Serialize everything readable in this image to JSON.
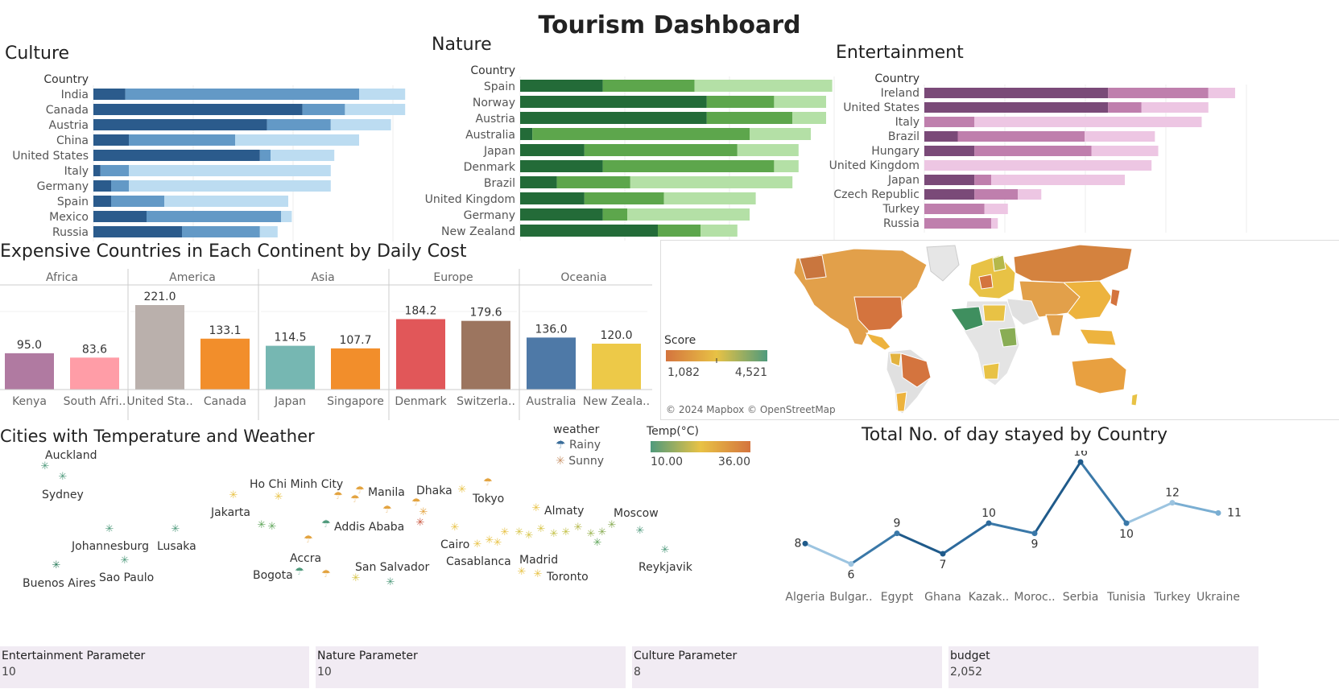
{
  "title": "Tourism Dashboard",
  "culture": {
    "title": "Culture",
    "dim_label": "Country",
    "colors": [
      "#2b5b8c",
      "#6399c6",
      "#bcdcf1"
    ],
    "rows": [
      {
        "label": "India",
        "segments": [
          9,
          66,
          13
        ]
      },
      {
        "label": "Canada",
        "segments": [
          59,
          12,
          17
        ]
      },
      {
        "label": "Austria",
        "segments": [
          49,
          18,
          17
        ]
      },
      {
        "label": "China",
        "segments": [
          10,
          30,
          35
        ]
      },
      {
        "label": "United States",
        "segments": [
          47,
          3,
          18
        ]
      },
      {
        "label": "Italy",
        "segments": [
          2,
          8,
          57
        ]
      },
      {
        "label": "Germany",
        "segments": [
          5,
          5,
          57
        ]
      },
      {
        "label": "Spain",
        "segments": [
          5,
          15,
          35
        ]
      },
      {
        "label": "Mexico",
        "segments": [
          15,
          38,
          3
        ]
      },
      {
        "label": "Russia",
        "segments": [
          25,
          22,
          5
        ]
      }
    ]
  },
  "nature": {
    "title": "Nature",
    "dim_label": "Country",
    "colors": [
      "#236b38",
      "#5da64c",
      "#b4e0a6"
    ],
    "rows": [
      {
        "label": "Spain",
        "segments": [
          27,
          30,
          45
        ]
      },
      {
        "label": "Norway",
        "segments": [
          61,
          22,
          17
        ]
      },
      {
        "label": "Austria",
        "segments": [
          61,
          28,
          11
        ]
      },
      {
        "label": "Australia",
        "segments": [
          4,
          71,
          20
        ]
      },
      {
        "label": "Japan",
        "segments": [
          21,
          50,
          20
        ]
      },
      {
        "label": "Denmark",
        "segments": [
          27,
          56,
          8
        ]
      },
      {
        "label": "Brazil",
        "segments": [
          12,
          24,
          53
        ]
      },
      {
        "label": "United Kingdom",
        "segments": [
          21,
          26,
          30
        ]
      },
      {
        "label": "Germany",
        "segments": [
          27,
          8,
          40
        ]
      },
      {
        "label": "New Zealand",
        "segments": [
          45,
          14,
          12
        ]
      }
    ]
  },
  "entertainment": {
    "title": "Entertainment",
    "dim_label": "Country",
    "colors": [
      "#7a4a78",
      "#bf7fad",
      "#edc6e3"
    ],
    "rows": [
      {
        "label": "Ireland",
        "segments": [
          55,
          30,
          8
        ]
      },
      {
        "label": "United States",
        "segments": [
          55,
          10,
          20
        ]
      },
      {
        "label": "Italy",
        "segments": [
          0,
          15,
          68
        ]
      },
      {
        "label": "Brazil",
        "segments": [
          10,
          38,
          21
        ]
      },
      {
        "label": "Hungary",
        "segments": [
          15,
          35,
          20
        ]
      },
      {
        "label": "United Kingdom",
        "segments": [
          0,
          0,
          68
        ]
      },
      {
        "label": "Japan",
        "segments": [
          15,
          5,
          40
        ]
      },
      {
        "label": "Czech Republic",
        "segments": [
          15,
          13,
          7
        ]
      },
      {
        "label": "Turkey",
        "segments": [
          0,
          18,
          7
        ]
      },
      {
        "label": "Russia",
        "segments": [
          0,
          20,
          2
        ]
      }
    ]
  },
  "daily_cost": {
    "title": "Expensive Countries in Each Continent by Daily Cost",
    "groups": [
      {
        "continent": "Africa",
        "bars": [
          {
            "label": "Kenya",
            "value": 95.0,
            "value_label": "95.0",
            "color": "#b07aa1"
          },
          {
            "label": "South Afri..",
            "value": 83.6,
            "value_label": "83.6",
            "color": "#ff9da7"
          }
        ]
      },
      {
        "continent": "America",
        "bars": [
          {
            "label": "United Sta..",
            "value": 221.0,
            "value_label": "221.0",
            "color": "#bab0ac"
          },
          {
            "label": "Canada",
            "value": 133.1,
            "value_label": "133.1",
            "color": "#f28e2b"
          }
        ]
      },
      {
        "continent": "Asia",
        "bars": [
          {
            "label": "Japan",
            "value": 114.5,
            "value_label": "114.5",
            "color": "#76b7b2"
          },
          {
            "label": "Singapore",
            "value": 107.7,
            "value_label": "107.7",
            "color": "#f28e2b"
          }
        ]
      },
      {
        "continent": "Europe",
        "bars": [
          {
            "label": "Denmark",
            "value": 184.2,
            "value_label": "184.2",
            "color": "#e15759"
          },
          {
            "label": "Switzerla..",
            "value": 179.6,
            "value_label": "179.6",
            "color": "#9c755f"
          }
        ]
      },
      {
        "continent": "Oceania",
        "bars": [
          {
            "label": "Australia",
            "value": 136.0,
            "value_label": "136.0",
            "color": "#4e79a7"
          },
          {
            "label": "New Zeala..",
            "value": 120.0,
            "value_label": "120.0",
            "color": "#edc948"
          }
        ]
      }
    ]
  },
  "map": {
    "legend_title": "Score",
    "legend_min": "1,082",
    "legend_max": "4,521",
    "attribution": "© 2024 Mapbox © OpenStreetMap"
  },
  "cities": {
    "title": "Cities with Temperature and Weather",
    "weather_legend_title": "weather",
    "weather_items": [
      "Rainy",
      "Sunny"
    ],
    "temp_legend_title": "Temp(°C)",
    "temp_min": "10.00",
    "temp_max": "36.00",
    "labels": [
      "Auckland",
      "Sydney",
      "Johannesburg",
      "Lusaka",
      "Buenos Aires",
      "Sao Paulo",
      "Ho Chi Minh City",
      "Jakarta",
      "Manila",
      "Dhaka",
      "Tokyo",
      "Addis Ababa",
      "Almaty",
      "Moscow",
      "Accra",
      "Bogota",
      "San Salvador",
      "Cairo",
      "Casablanca",
      "Madrid",
      "Toronto",
      "Reykjavik"
    ]
  },
  "days_chart_title": "Total No. of day stayed by Country",
  "chart_data": {
    "type": "line",
    "title": "Total No. of day stayed by Country",
    "categories": [
      "Algeria",
      "Bulgar..",
      "Egypt",
      "Ghana",
      "Kazak..",
      "Moroc..",
      "Serbia",
      "Tunisia",
      "Turkey",
      "Ukraine"
    ],
    "values": [
      8,
      6,
      9,
      7,
      10,
      9,
      16,
      10,
      12,
      11
    ],
    "value_labels": [
      "8",
      "6",
      "9",
      "7",
      "10",
      "9",
      "16",
      "10",
      "12",
      "11"
    ],
    "ylim": [
      4,
      16
    ]
  },
  "parameters": [
    {
      "label": "Entertainment Parameter",
      "value": "10"
    },
    {
      "label": "Nature Parameter",
      "value": "10"
    },
    {
      "label": "Culture Parameter",
      "value": "8"
    },
    {
      "label": "budget",
      "value": "2,052"
    }
  ]
}
